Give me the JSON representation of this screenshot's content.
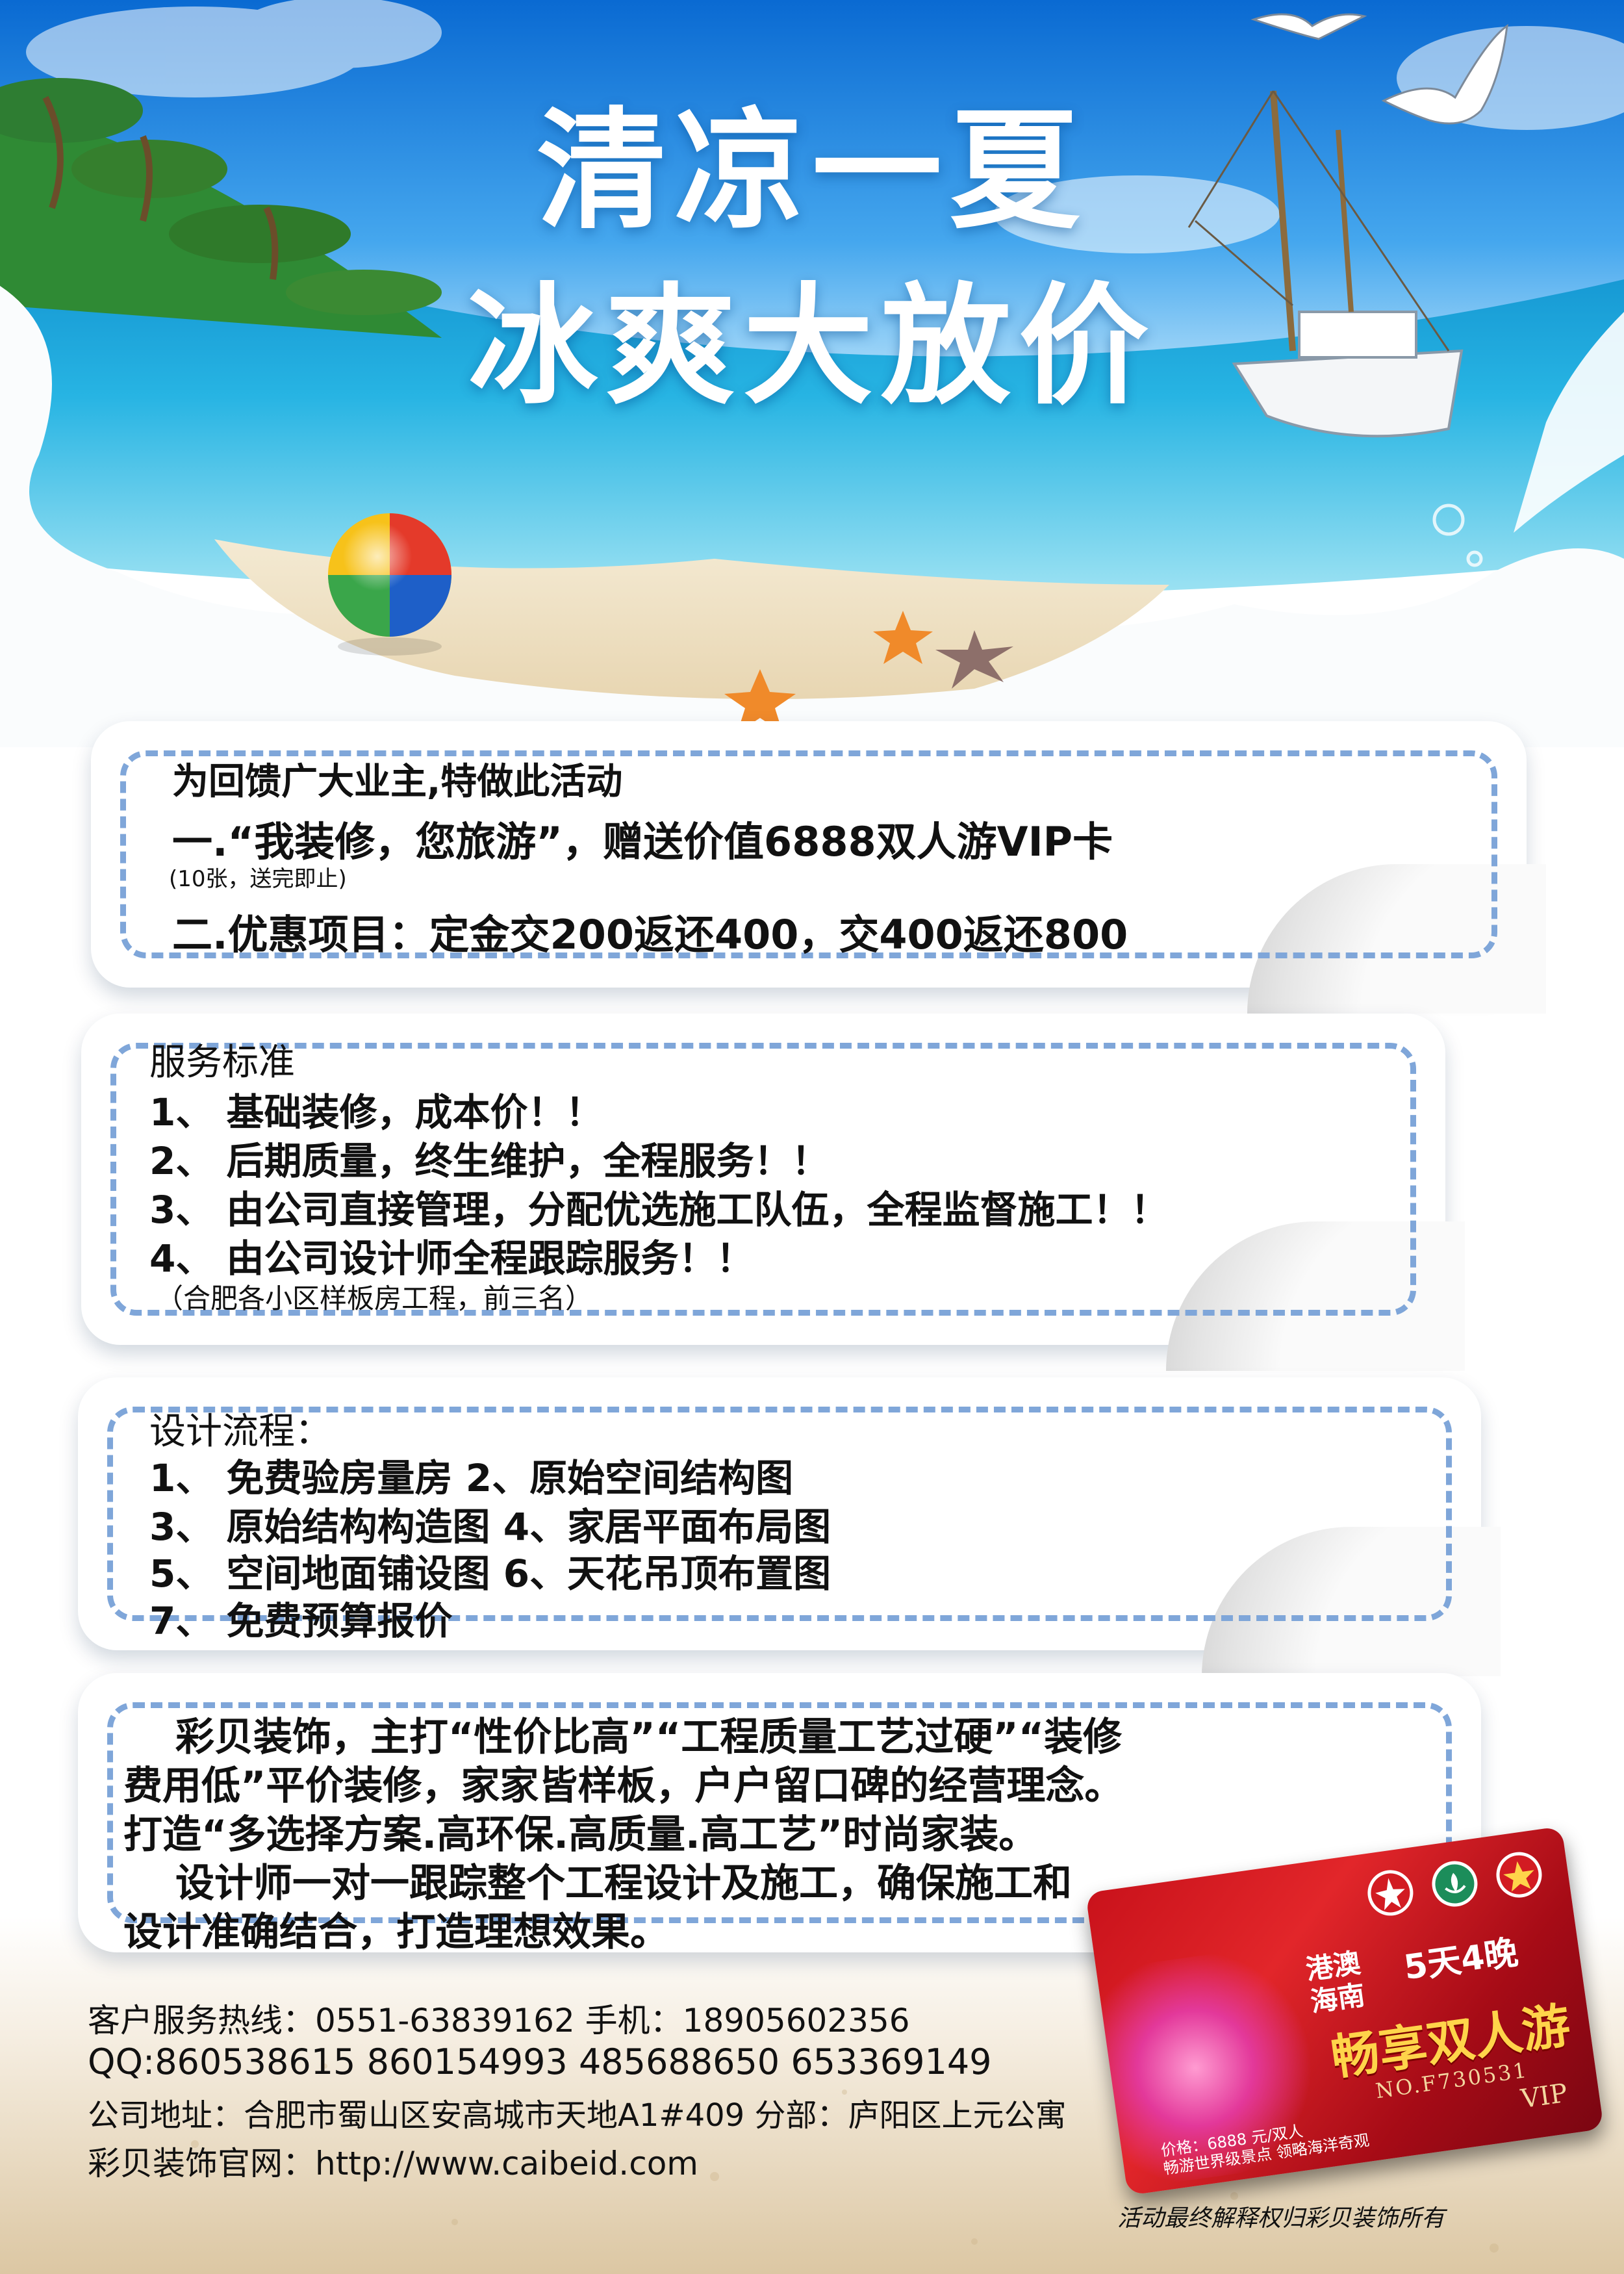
{
  "headline": {
    "line1": "清凉一夏",
    "line2": "冰爽大放价"
  },
  "card1": {
    "intro": "为回馈广大业主,特做此活动",
    "item1": "一.“我装修，您旅游”，赠送价值6888双人游VIP卡",
    "item1_note": "(10张，送完即止)",
    "item2": "二.优惠项目：定金交200返还400，交400返还800"
  },
  "card2": {
    "title": "服务标准",
    "items": [
      "1、 基础装修，成本价！！",
      "2、 后期质量，终生维护，全程服务！！",
      "3、 由公司直接管理，分配优选施工队伍，全程监督施工！！",
      "4、 由公司设计师全程跟踪服务！！"
    ],
    "note": "（合肥各小区样板房工程，前三名）"
  },
  "card3": {
    "title": "设计流程：",
    "rows": [
      "1、 免费验房量房 2、原始空间结构图",
      "3、 原始结构构造图 4、家居平面布局图",
      "5、 空间地面铺设图 6、天花吊顶布置图",
      "7、 免费预算报价"
    ]
  },
  "card4": {
    "lines": [
      "彩贝装饰，主打“性价比高”“工程质量工艺过硬”“装修",
      "费用低”平价装修，家家皆样板，户户留口碑的经营理念。",
      "打造“多选择方案.高环保.高质量.高工艺”时尚家装。",
      "设计师一对一跟踪整个工程设计及施工，确保施工和",
      "设计准确结合，打造理想效果。"
    ]
  },
  "contact": {
    "hotline": "客户服务热线：0551-63839162 手机：18905602356",
    "qq": "QQ:860538615 860154993 485688650 653369149",
    "address": "公司地址：合肥市蜀山区安高城市天地A1#409 分部：庐阳区上元公寓",
    "website": "彩贝装饰官网：http://www.caibeid.com"
  },
  "vip_card": {
    "region_line1": "港澳",
    "region_line2": "海南",
    "duration": "5天4晚",
    "headline": "畅享双人游",
    "number": "NO.F730531",
    "tag": "VIP",
    "price": "价格：6888 元/双人",
    "desc": "畅游世界级景点 领略海洋奇观"
  },
  "footer": "活动最终解释权归彩贝装饰所有",
  "colors": {
    "dash": "#7fa6d9",
    "sky_top": "#0f72d6",
    "sea": "#1ea4dc",
    "sand": "#efe1c3",
    "vip_red": "#d21b22"
  }
}
